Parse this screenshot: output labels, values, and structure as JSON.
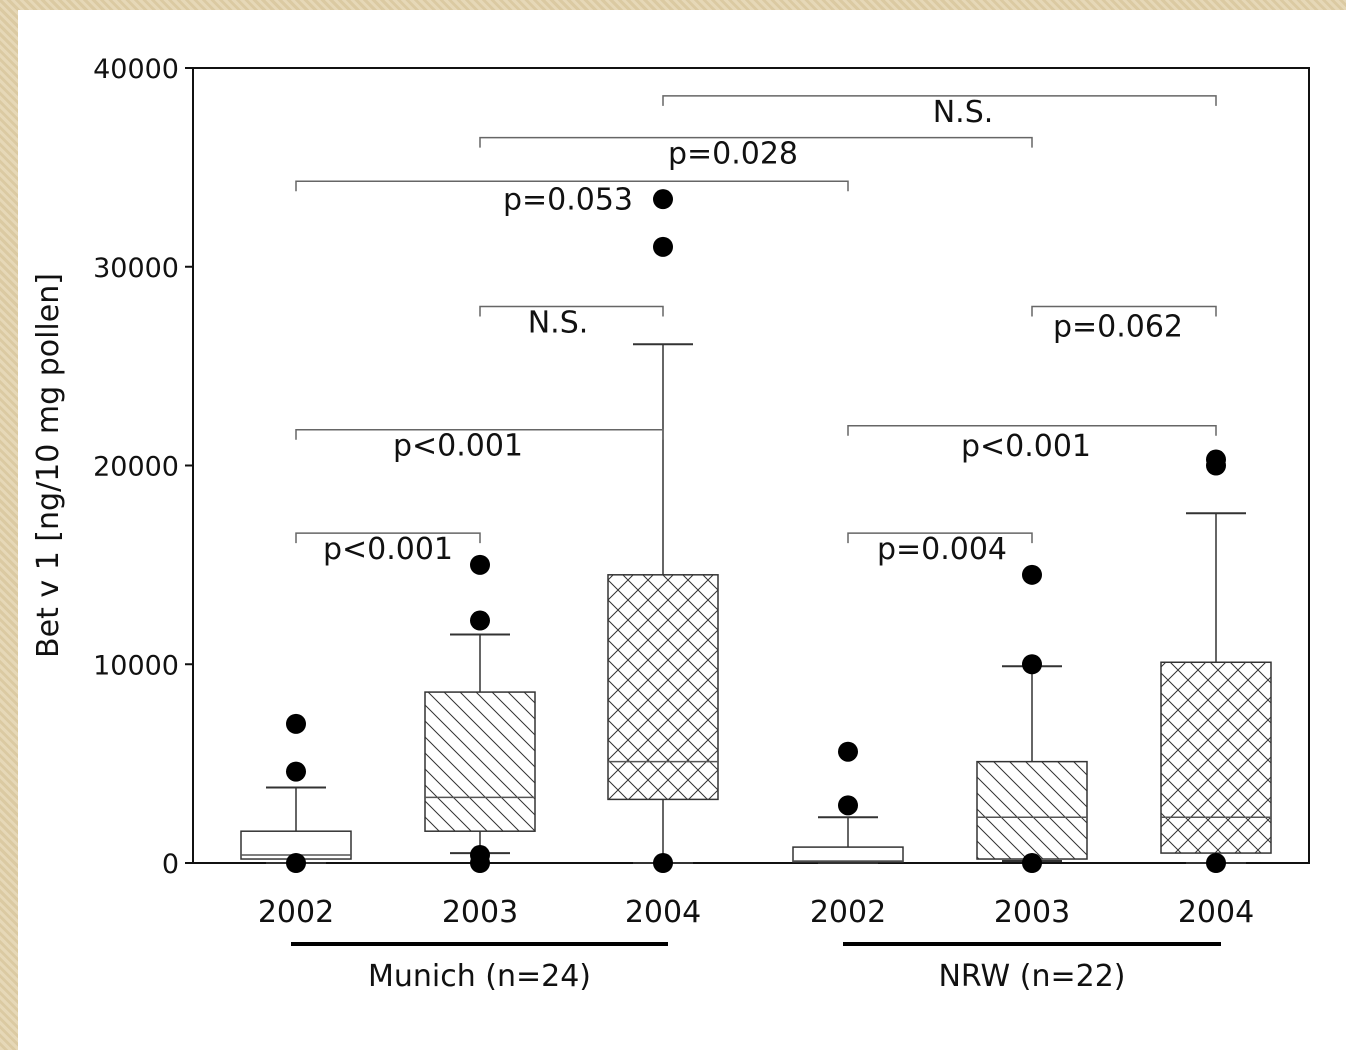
{
  "chart_data": {
    "type": "box",
    "ylabel": "Bet v 1 [ng/10 mg pollen]",
    "ylim": [
      0,
      40000
    ],
    "yticks": [
      0,
      10000,
      20000,
      30000,
      40000
    ],
    "groups": [
      {
        "label": "Munich (n=24)",
        "categories": [
          0,
          1,
          2
        ]
      },
      {
        "label": "NRW (n=22)",
        "categories": [
          3,
          4,
          5
        ]
      }
    ],
    "boxes": [
      {
        "category": "2002",
        "group": "Munich (n=24)",
        "pattern": "none",
        "whisker_low": 0,
        "q1": 200,
        "median": 400,
        "q3": 1600,
        "whisker_high": 3800,
        "outliers": [
          0,
          4600,
          7000
        ]
      },
      {
        "category": "2003",
        "group": "Munich (n=24)",
        "pattern": "diagonal",
        "whisker_low": 500,
        "q1": 1600,
        "median": 3300,
        "q3": 8600,
        "whisker_high": 11500,
        "outliers": [
          0,
          400,
          12200,
          15000
        ]
      },
      {
        "category": "2004",
        "group": "Munich (n=24)",
        "pattern": "crosshatch",
        "whisker_low": 0,
        "q1": 3200,
        "median": 5100,
        "q3": 14500,
        "whisker_high": 26100,
        "outliers": [
          0,
          31000,
          33400
        ]
      },
      {
        "category": "2002",
        "group": "NRW (n=22)",
        "pattern": "none",
        "whisker_low": 0,
        "q1": 50,
        "median": 100,
        "q3": 800,
        "whisker_high": 2300,
        "outliers": [
          2900,
          5600
        ]
      },
      {
        "category": "2003",
        "group": "NRW (n=22)",
        "pattern": "diagonal",
        "whisker_low": 100,
        "q1": 200,
        "median": 2300,
        "q3": 5100,
        "whisker_high": 9900,
        "outliers": [
          0,
          10000,
          14500
        ]
      },
      {
        "category": "2004",
        "group": "NRW (n=22)",
        "pattern": "crosshatch",
        "whisker_low": 0,
        "q1": 500,
        "median": 2300,
        "q3": 10100,
        "whisker_high": 17600,
        "outliers": [
          0,
          20000,
          20300
        ]
      }
    ],
    "comparisons": [
      {
        "from": 0,
        "to": 1,
        "y": 16600,
        "label": "p<0.001"
      },
      {
        "from": 0,
        "to": 2,
        "y": 21800,
        "label": "p<0.001"
      },
      {
        "from": 1,
        "to": 2,
        "y": 28000,
        "label": "N.S."
      },
      {
        "from": 0,
        "to": 3,
        "y": 34300,
        "label": "p=0.053"
      },
      {
        "from": 1,
        "to": 4,
        "y": 36500,
        "label": "p=0.028"
      },
      {
        "from": 2,
        "to": 5,
        "y": 38600,
        "label": "N.S."
      },
      {
        "from": 3,
        "to": 4,
        "y": 16600,
        "label": "p=0.004"
      },
      {
        "from": 3,
        "to": 5,
        "y": 22000,
        "label": "p<0.001"
      },
      {
        "from": 4,
        "to": 5,
        "y": 28000,
        "label": "p=0.062"
      }
    ]
  }
}
